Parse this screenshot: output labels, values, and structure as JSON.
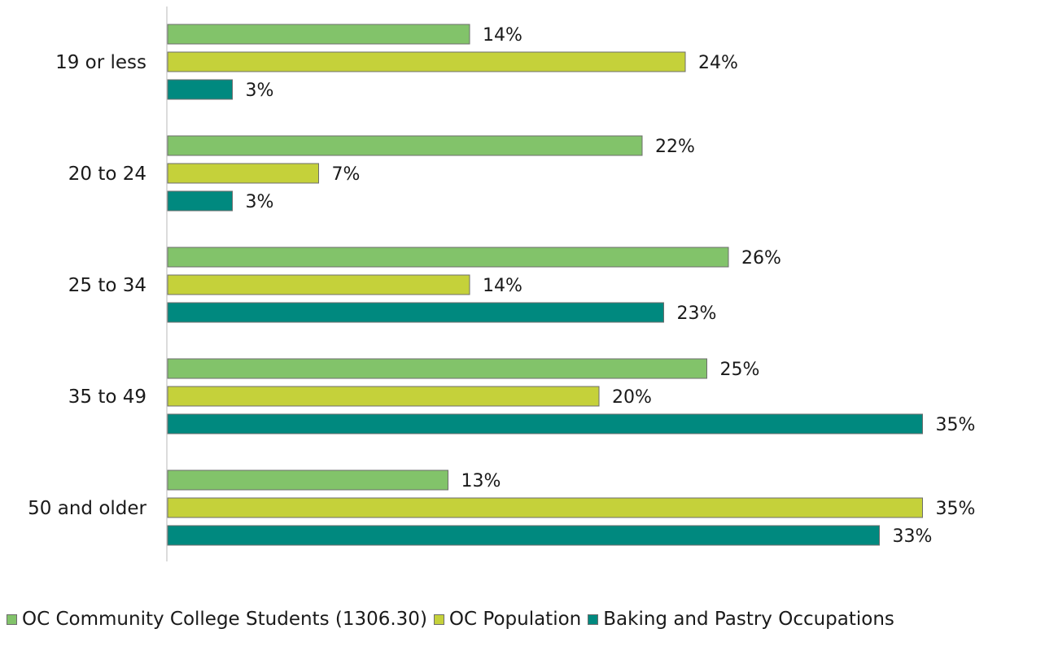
{
  "chart_data": {
    "type": "bar",
    "orientation": "horizontal",
    "categories": [
      "19 or less",
      "20 to 24",
      "25 to 34",
      "35 to 49",
      "50 and older"
    ],
    "series": [
      {
        "name": "OC Community College Students (1306.30)",
        "color": "#82c36a",
        "values": [
          14,
          22,
          26,
          25,
          13
        ],
        "labels": [
          "14%",
          "22%",
          "26%",
          "25%",
          "13%"
        ]
      },
      {
        "name": "OC Population",
        "color": "#c5d13a",
        "values": [
          24,
          7,
          14,
          20,
          35
        ],
        "labels": [
          "24%",
          "7%",
          "14%",
          "20%",
          "35%"
        ]
      },
      {
        "name": "Baking and Pastry Occupations",
        "color": "#00897f",
        "values": [
          3,
          3,
          23,
          35,
          33
        ],
        "labels": [
          "3%",
          "3%",
          "23%",
          "35%",
          "33%"
        ]
      }
    ],
    "value_unit": "%",
    "xlim": [
      0,
      40
    ],
    "grid": false,
    "legend_position": "bottom"
  }
}
